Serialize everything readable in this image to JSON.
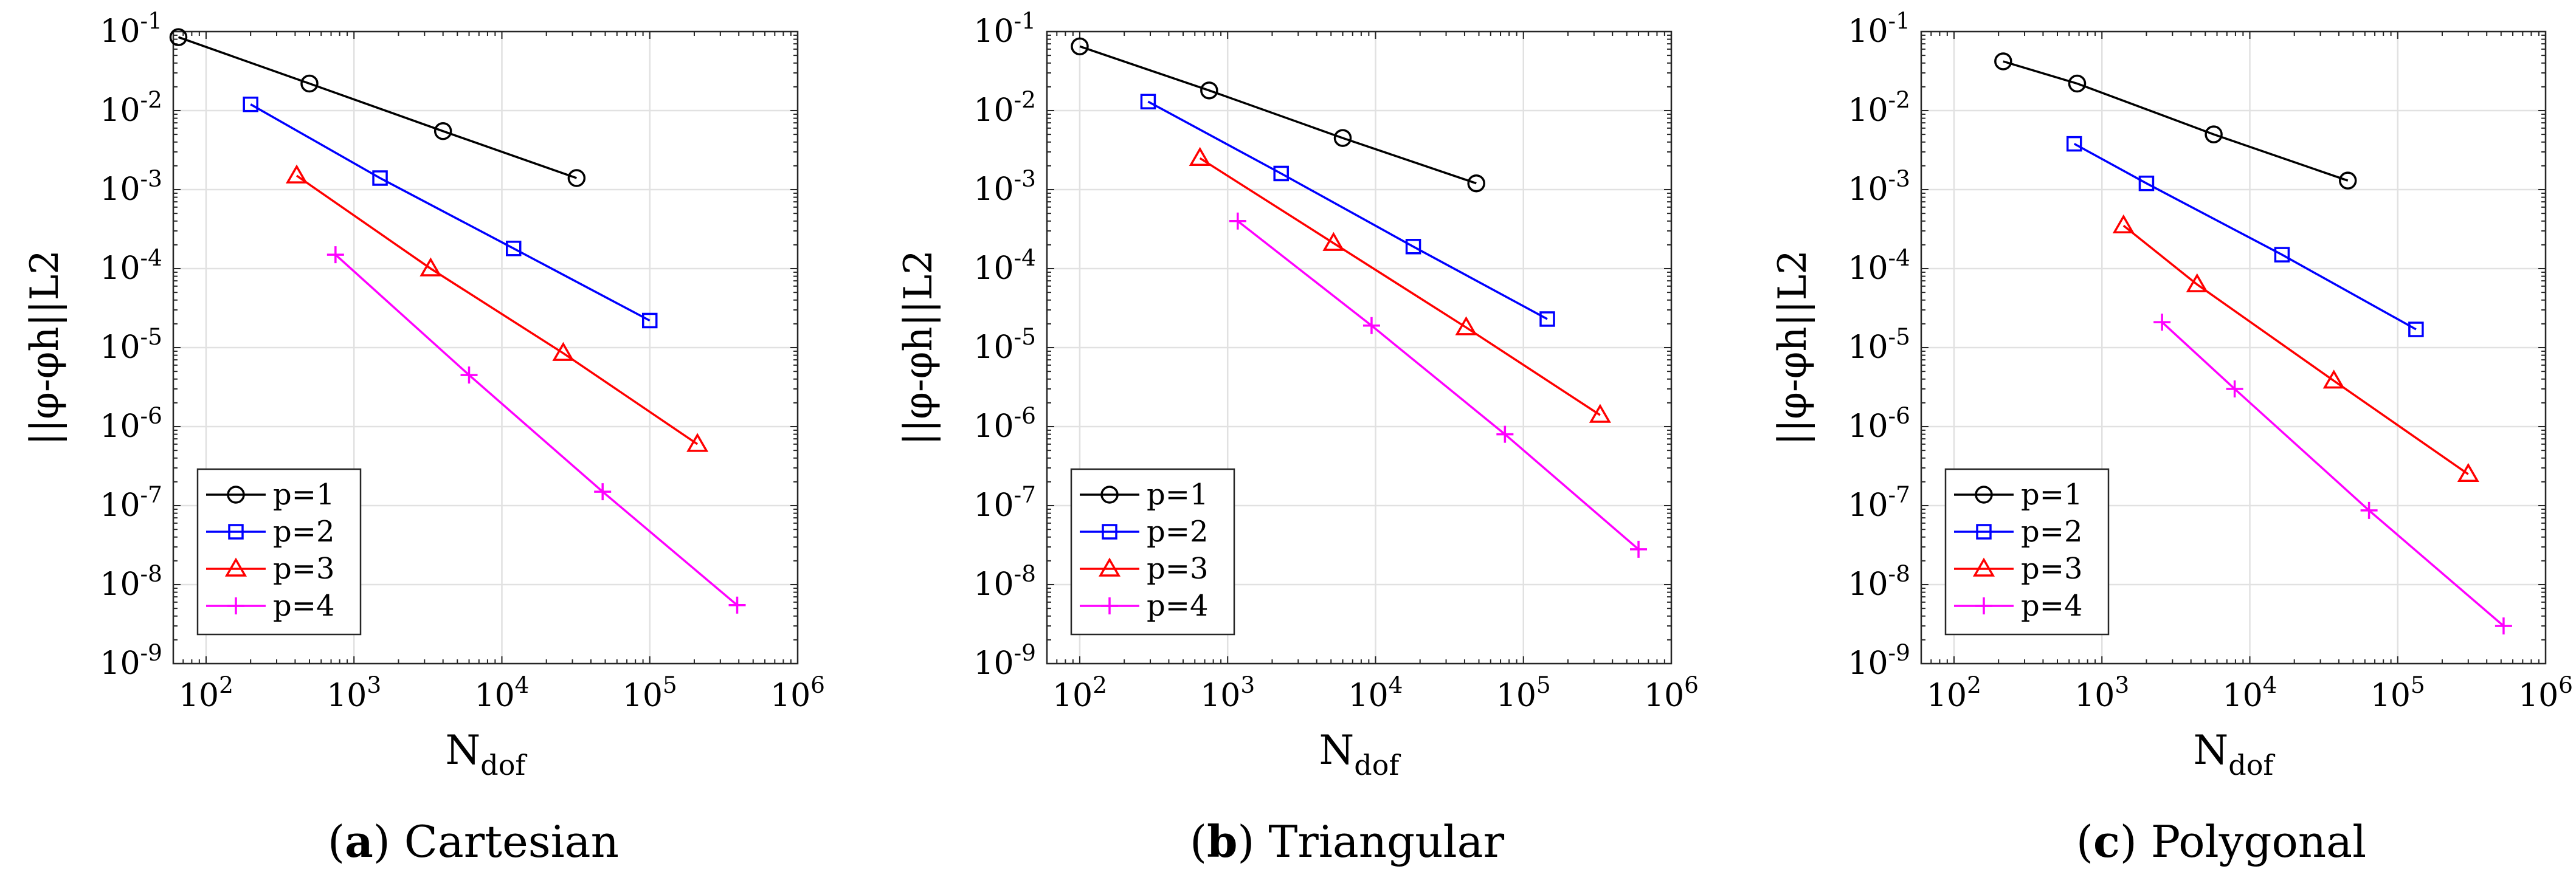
{
  "figure": {
    "panels": [
      {
        "caption_letter": "a",
        "caption_text": "Cartesian",
        "chart_data": {
          "type": "line",
          "title": "",
          "xscale": "log",
          "yscale": "log",
          "xlim": [
            60,
            1000000
          ],
          "ylim": [
            1e-09,
            0.1
          ],
          "xlabel_main": "N",
          "xlabel_sub": "dof",
          "ylabel": "||φ-φh||L2",
          "x_ticks": [
            {
              "main": "10",
              "exp": "2"
            },
            {
              "main": "10",
              "exp": "3"
            },
            {
              "main": "10",
              "exp": "4"
            },
            {
              "main": "10",
              "exp": "5"
            },
            {
              "main": "10",
              "exp": "6"
            }
          ],
          "y_ticks": [
            {
              "main": "10",
              "exp": "-9"
            },
            {
              "main": "10",
              "exp": "-8"
            },
            {
              "main": "10",
              "exp": "-7"
            },
            {
              "main": "10",
              "exp": "-6"
            },
            {
              "main": "10",
              "exp": "-5"
            },
            {
              "main": "10",
              "exp": "-4"
            },
            {
              "main": "10",
              "exp": "-3"
            },
            {
              "main": "10",
              "exp": "-2"
            },
            {
              "main": "10",
              "exp": "-1"
            }
          ],
          "legend_position": "bottom-left",
          "grid": true,
          "series": [
            {
              "name": "p=1",
              "color": "#000000",
              "marker": "circle",
              "x": [
                65,
                500,
                4000,
                32000
              ],
              "y": [
                0.085,
                0.022,
                0.0055,
                0.0014
              ]
            },
            {
              "name": "p=2",
              "color": "#0000ff",
              "marker": "square",
              "x": [
                200,
                1500,
                12000,
                100000
              ],
              "y": [
                0.012,
                0.0014,
                0.00018,
                2.2e-05
              ]
            },
            {
              "name": "p=3",
              "color": "#ff0000",
              "marker": "triangle",
              "x": [
                410,
                3300,
                26000,
                210000
              ],
              "y": [
                0.0015,
                0.0001,
                8.5e-06,
                6e-07
              ]
            },
            {
              "name": "p=4",
              "color": "#ff00ff",
              "marker": "plus",
              "x": [
                750,
                6000,
                48000,
                390000
              ],
              "y": [
                0.00015,
                4.5e-06,
                1.5e-07,
                5.5e-09
              ]
            }
          ]
        }
      },
      {
        "caption_letter": "b",
        "caption_text": "Triangular",
        "chart_data": {
          "type": "line",
          "title": "",
          "xscale": "log",
          "yscale": "log",
          "xlim": [
            60,
            1000000
          ],
          "ylim": [
            1e-09,
            0.1
          ],
          "xlabel_main": "N",
          "xlabel_sub": "dof",
          "ylabel": "||φ-φh||L2",
          "x_ticks": [
            {
              "main": "10",
              "exp": "2"
            },
            {
              "main": "10",
              "exp": "3"
            },
            {
              "main": "10",
              "exp": "4"
            },
            {
              "main": "10",
              "exp": "5"
            },
            {
              "main": "10",
              "exp": "6"
            }
          ],
          "y_ticks": [
            {
              "main": "10",
              "exp": "-9"
            },
            {
              "main": "10",
              "exp": "-8"
            },
            {
              "main": "10",
              "exp": "-7"
            },
            {
              "main": "10",
              "exp": "-6"
            },
            {
              "main": "10",
              "exp": "-5"
            },
            {
              "main": "10",
              "exp": "-4"
            },
            {
              "main": "10",
              "exp": "-3"
            },
            {
              "main": "10",
              "exp": "-2"
            },
            {
              "main": "10",
              "exp": "-1"
            }
          ],
          "legend_position": "bottom-left",
          "grid": true,
          "series": [
            {
              "name": "p=1",
              "color": "#000000",
              "marker": "circle",
              "x": [
                100,
                750,
                6000,
                48000
              ],
              "y": [
                0.065,
                0.018,
                0.0045,
                0.0012
              ]
            },
            {
              "name": "p=2",
              "color": "#0000ff",
              "marker": "square",
              "x": [
                290,
                2300,
                18000,
                145000
              ],
              "y": [
                0.013,
                0.0016,
                0.00019,
                2.3e-05
              ]
            },
            {
              "name": "p=3",
              "color": "#ff0000",
              "marker": "triangle",
              "x": [
                650,
                5200,
                41000,
                330000
              ],
              "y": [
                0.0025,
                0.00021,
                1.8e-05,
                1.4e-06
              ]
            },
            {
              "name": "p=4",
              "color": "#ff00ff",
              "marker": "plus",
              "x": [
                1170,
                9400,
                75000,
                600000
              ],
              "y": [
                0.0004,
                1.9e-05,
                8e-07,
                2.8e-08
              ]
            }
          ]
        }
      },
      {
        "caption_letter": "c",
        "caption_text": "Polygonal",
        "chart_data": {
          "type": "line",
          "title": "",
          "xscale": "log",
          "yscale": "log",
          "xlim": [
            60,
            1000000
          ],
          "ylim": [
            1e-09,
            0.1
          ],
          "xlabel_main": "N",
          "xlabel_sub": "dof",
          "ylabel": "||φ-φh||L2",
          "x_ticks": [
            {
              "main": "10",
              "exp": "2"
            },
            {
              "main": "10",
              "exp": "3"
            },
            {
              "main": "10",
              "exp": "4"
            },
            {
              "main": "10",
              "exp": "5"
            },
            {
              "main": "10",
              "exp": "6"
            }
          ],
          "y_ticks": [
            {
              "main": "10",
              "exp": "-9"
            },
            {
              "main": "10",
              "exp": "-8"
            },
            {
              "main": "10",
              "exp": "-7"
            },
            {
              "main": "10",
              "exp": "-6"
            },
            {
              "main": "10",
              "exp": "-5"
            },
            {
              "main": "10",
              "exp": "-4"
            },
            {
              "main": "10",
              "exp": "-3"
            },
            {
              "main": "10",
              "exp": "-2"
            },
            {
              "main": "10",
              "exp": "-1"
            }
          ],
          "legend_position": "bottom-left",
          "grid": true,
          "series": [
            {
              "name": "p=1",
              "color": "#000000",
              "marker": "circle",
              "x": [
                215,
                680,
                5700,
                46000
              ],
              "y": [
                0.042,
                0.022,
                0.005,
                0.0013
              ]
            },
            {
              "name": "p=2",
              "color": "#0000ff",
              "marker": "square",
              "x": [
                650,
                2000,
                16500,
                133000
              ],
              "y": [
                0.0038,
                0.0012,
                0.00015,
                1.7e-05
              ]
            },
            {
              "name": "p=3",
              "color": "#ff0000",
              "marker": "triangle",
              "x": [
                1400,
                4400,
                37000,
                300000
              ],
              "y": [
                0.00035,
                6.3e-05,
                3.8e-06,
                2.5e-07
              ]
            },
            {
              "name": "p=4",
              "color": "#ff00ff",
              "marker": "plus",
              "x": [
                2550,
                7900,
                64000,
                520000
              ],
              "y": [
                2.1e-05,
                3e-06,
                8.7e-08,
                3e-09
              ]
            }
          ]
        }
      }
    ]
  }
}
